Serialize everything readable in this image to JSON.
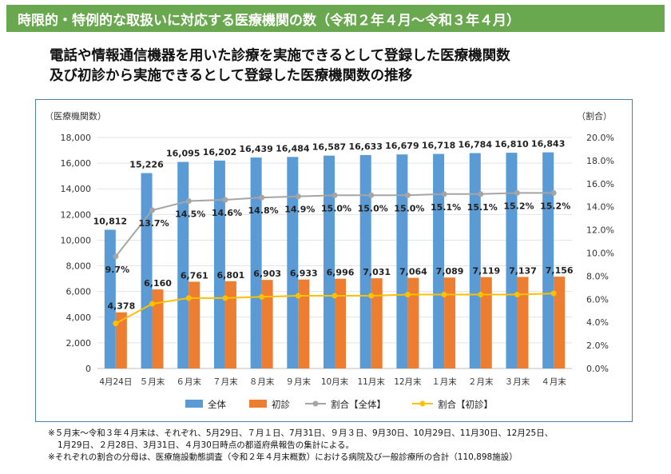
{
  "banner": {
    "title": "時限的・特例的な取扱いに対応する医療機関の数（令和２年４月～令和３年４月）"
  },
  "heading": {
    "line1": "電話や情報通信機器を用いた診療を実施できるとして登録した医療機関数",
    "line2": "及び初診から実施できるとして登録した医療機関数の推移"
  },
  "notes": {
    "line1": "※５月末～令和３年４月末は、それぞれ、5月29日、７月１日、7月31日、９月３日、9月30日、10月29日、11月30日、12月25日、",
    "line2": "1月29日、２月28日、3月31日、４月30日時点の都道府県報告の集計による。",
    "line3": "※それぞれの割合の分母は、医療施設動態調査（令和２年４月末概数）における病院及び一般診療所の合計（110,898施設）"
  },
  "colors": {
    "total": "#5b9bd5",
    "first": "#ed7d31",
    "ratio_total": "#a5a5a5",
    "ratio_first": "#ffc000"
  },
  "chart_data": {
    "type": "bar",
    "categories": [
      "4月24日",
      "５月末",
      "６月末",
      "７月末",
      "８月末",
      "９月末",
      "10月末",
      "11月末",
      "12月末",
      "１月末",
      "２月末",
      "３月末",
      "４月末"
    ],
    "ylabel": "（医療機関数）",
    "y2label": "（割合）",
    "ylim": [
      0,
      18000
    ],
    "y_ticks": [
      "0",
      "2,000",
      "4,000",
      "6,000",
      "8,000",
      "10,000",
      "12,000",
      "14,000",
      "16,000",
      "18,000"
    ],
    "y2lim": [
      0,
      20
    ],
    "y2_ticks": [
      "0.0%",
      "2.0%",
      "4.0%",
      "6.0%",
      "8.0%",
      "10.0%",
      "12.0%",
      "14.0%",
      "16.0%",
      "18.0%",
      "20.0%"
    ],
    "legend": [
      "全体",
      "初診",
      "割合【全体】",
      "割合【初診】"
    ],
    "legend_position": "bottom",
    "series": [
      {
        "name": "全体",
        "kind": "bar",
        "values": [
          10812,
          15226,
          16095,
          16202,
          16439,
          16484,
          16587,
          16633,
          16679,
          16718,
          16784,
          16810,
          16843
        ],
        "labels": [
          "10,812",
          "15,226",
          "16,095",
          "16,202",
          "16,439",
          "16,484",
          "16,587",
          "16,633",
          "16,679",
          "16,718",
          "16,784",
          "16,810",
          "16,843"
        ]
      },
      {
        "name": "初診",
        "kind": "bar",
        "values": [
          4378,
          6160,
          6761,
          6801,
          6903,
          6933,
          6996,
          7031,
          7064,
          7089,
          7119,
          7137,
          7156
        ],
        "labels": [
          "4,378",
          "6,160",
          "6,761",
          "6,801",
          "6,903",
          "6,933",
          "6,996",
          "7,031",
          "7,064",
          "7,089",
          "7,119",
          "7,137",
          "7,156"
        ]
      },
      {
        "name": "割合【全体】",
        "kind": "line",
        "values": [
          9.7,
          13.7,
          14.5,
          14.6,
          14.8,
          14.9,
          15.0,
          15.0,
          15.0,
          15.1,
          15.1,
          15.2,
          15.2
        ],
        "labels": [
          "9.7%",
          "13.7%",
          "14.5%",
          "14.6%",
          "14.8%",
          "14.9%",
          "15.0%",
          "15.0%",
          "15.0%",
          "15.1%",
          "15.1%",
          "15.2%",
          "15.2%"
        ]
      },
      {
        "name": "割合【初診】",
        "kind": "line",
        "values": [
          3.9,
          5.6,
          6.1,
          6.1,
          6.2,
          6.3,
          6.3,
          6.3,
          6.4,
          6.4,
          6.4,
          6.4,
          6.5
        ],
        "labels": []
      }
    ]
  }
}
